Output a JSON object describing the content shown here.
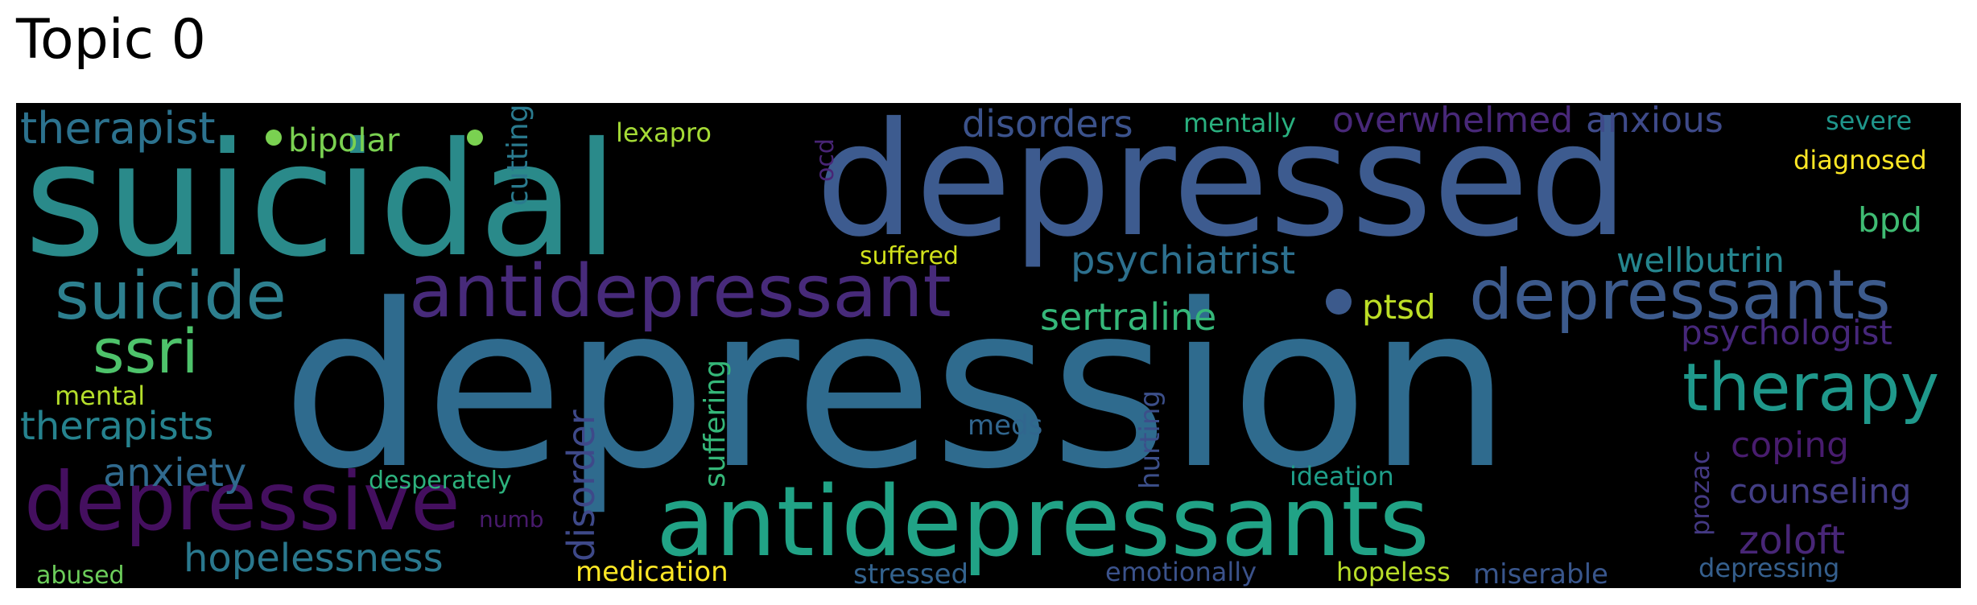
{
  "header": {
    "title": "Topic 0"
  },
  "wordcloud": {
    "background": "#000000",
    "palette": "viridis",
    "words": [
      {
        "id": "depression",
        "text": "depression",
        "color": "#2f6b8e"
      },
      {
        "id": "suicidal",
        "text": "suicidal",
        "color": "#2a8a8a"
      },
      {
        "id": "depressed",
        "text": "depressed",
        "color": "#3d5b8f"
      },
      {
        "id": "antidepressants",
        "text": "antidepressants",
        "color": "#21a386"
      },
      {
        "id": "antidepressant",
        "text": "antidepressant",
        "color": "#472a7a"
      },
      {
        "id": "depressive",
        "text": "depressive",
        "color": "#440f5f"
      },
      {
        "id": "depressants",
        "text": "depressants",
        "color": "#3c5a8c"
      },
      {
        "id": "suicide",
        "text": "suicide",
        "color": "#2d7f8e"
      },
      {
        "id": "therapy",
        "text": "therapy",
        "color": "#1f988b"
      },
      {
        "id": "ssri",
        "text": "ssri",
        "color": "#4ec36b"
      },
      {
        "id": "therapist",
        "text": "therapist",
        "color": "#2c728e"
      },
      {
        "id": "psychiatrist",
        "text": "psychiatrist",
        "color": "#2d708e"
      },
      {
        "id": "disorders",
        "text": "disorders",
        "color": "#3b528b"
      },
      {
        "id": "overwhelmed",
        "text": "overwhelmed",
        "color": "#482878"
      },
      {
        "id": "anxious",
        "text": "anxious",
        "color": "#3e4a89"
      },
      {
        "id": "therapists",
        "text": "therapists",
        "color": "#26828e"
      },
      {
        "id": "hopelessness",
        "text": "hopelessness",
        "color": "#2a788e"
      },
      {
        "id": "anxiety",
        "text": "anxiety",
        "color": "#306a8e"
      },
      {
        "id": "sertraline",
        "text": "sertraline",
        "color": "#35b779"
      },
      {
        "id": "psychologist",
        "text": "psychologist",
        "color": "#46277a"
      },
      {
        "id": "wellbutrin",
        "text": "wellbutrin",
        "color": "#25858e"
      },
      {
        "id": "coping",
        "text": "coping",
        "color": "#481c6e"
      },
      {
        "id": "counseling",
        "text": "counseling",
        "color": "#433e85"
      },
      {
        "id": "zoloft",
        "text": "zoloft",
        "color": "#482677"
      },
      {
        "id": "bipolar",
        "text": "bipolar",
        "color": "#7ad151"
      },
      {
        "id": "bpd",
        "text": "bpd",
        "color": "#3fbc73"
      },
      {
        "id": "ptsd",
        "text": "ptsd",
        "color": "#bddf26"
      },
      {
        "id": "disorder",
        "text": "disorder",
        "color": "#3e4989"
      },
      {
        "id": "suffering",
        "text": "suffering",
        "color": "#35b779"
      },
      {
        "id": "cutting",
        "text": "cutting",
        "color": "#2a7a8e"
      },
      {
        "id": "hurting",
        "text": "hurting",
        "color": "#3c4f8a"
      },
      {
        "id": "prozac",
        "text": "prozac",
        "color": "#443983"
      },
      {
        "id": "severe",
        "text": "severe",
        "color": "#1f968b"
      },
      {
        "id": "diagnosed",
        "text": "diagnosed",
        "color": "#fde725"
      },
      {
        "id": "mentally",
        "text": "mentally",
        "color": "#2ab07f"
      },
      {
        "id": "lexapro",
        "text": "lexapro",
        "color": "#a5db36"
      },
      {
        "id": "ocd",
        "text": "ocd",
        "color": "#482475"
      },
      {
        "id": "suffered",
        "text": "suffered",
        "color": "#d2e21b"
      },
      {
        "id": "mental",
        "text": "mental",
        "color": "#b5de2b"
      },
      {
        "id": "meds",
        "text": "meds",
        "color": "#31668e"
      },
      {
        "id": "desperately",
        "text": "desperately",
        "color": "#2db27d"
      },
      {
        "id": "ideation",
        "text": "ideation",
        "color": "#1f9e89"
      },
      {
        "id": "numb",
        "text": "numb",
        "color": "#481a6c"
      },
      {
        "id": "medication",
        "text": "medication",
        "color": "#fde725"
      },
      {
        "id": "stressed",
        "text": "stressed",
        "color": "#33628d"
      },
      {
        "id": "emotionally",
        "text": "emotionally",
        "color": "#3b528b"
      },
      {
        "id": "hopeless",
        "text": "hopeless",
        "color": "#b8de29"
      },
      {
        "id": "miserable",
        "text": "miserable",
        "color": "#39568c"
      },
      {
        "id": "depressing",
        "text": "depressing",
        "color": "#355f8d"
      },
      {
        "id": "abused",
        "text": "abused",
        "color": "#6ccd5a"
      }
    ]
  }
}
